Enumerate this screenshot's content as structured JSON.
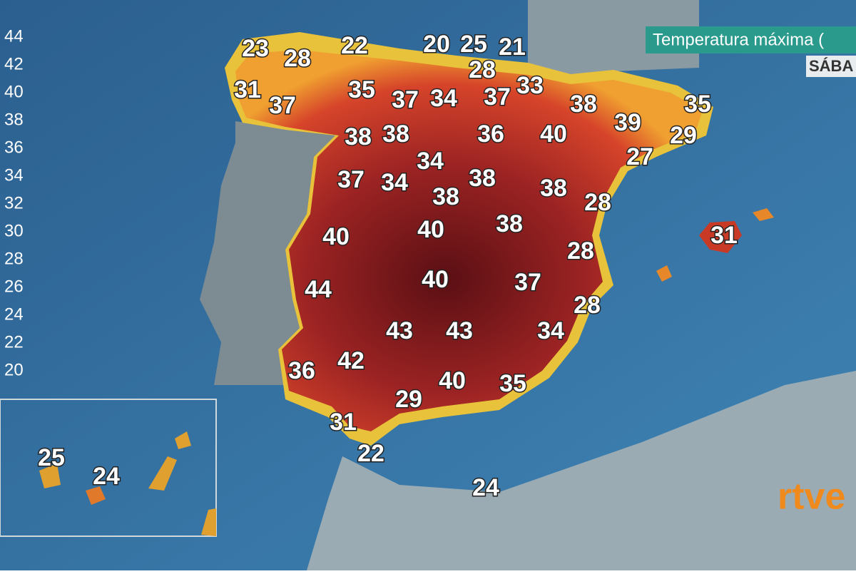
{
  "header": {
    "title": "Temperatura máxima (",
    "day": "SÁBA"
  },
  "legend": {
    "labels": [
      44,
      42,
      40,
      38,
      36,
      34,
      32,
      30,
      28,
      26,
      24,
      22,
      20
    ]
  },
  "temperatures": [
    23,
    28,
    22,
    20,
    25,
    21,
    28,
    31,
    37,
    35,
    37,
    34,
    37,
    33,
    38,
    35,
    39,
    29,
    38,
    38,
    36,
    40,
    27,
    34,
    37,
    34,
    38,
    38,
    38,
    28,
    40,
    40,
    38,
    31,
    28,
    44,
    40,
    37,
    28,
    43,
    43,
    34,
    36,
    42,
    40,
    35,
    29,
    31,
    22,
    24
  ],
  "inset_temperatures": [
    25,
    24
  ],
  "logo": "rtve"
}
